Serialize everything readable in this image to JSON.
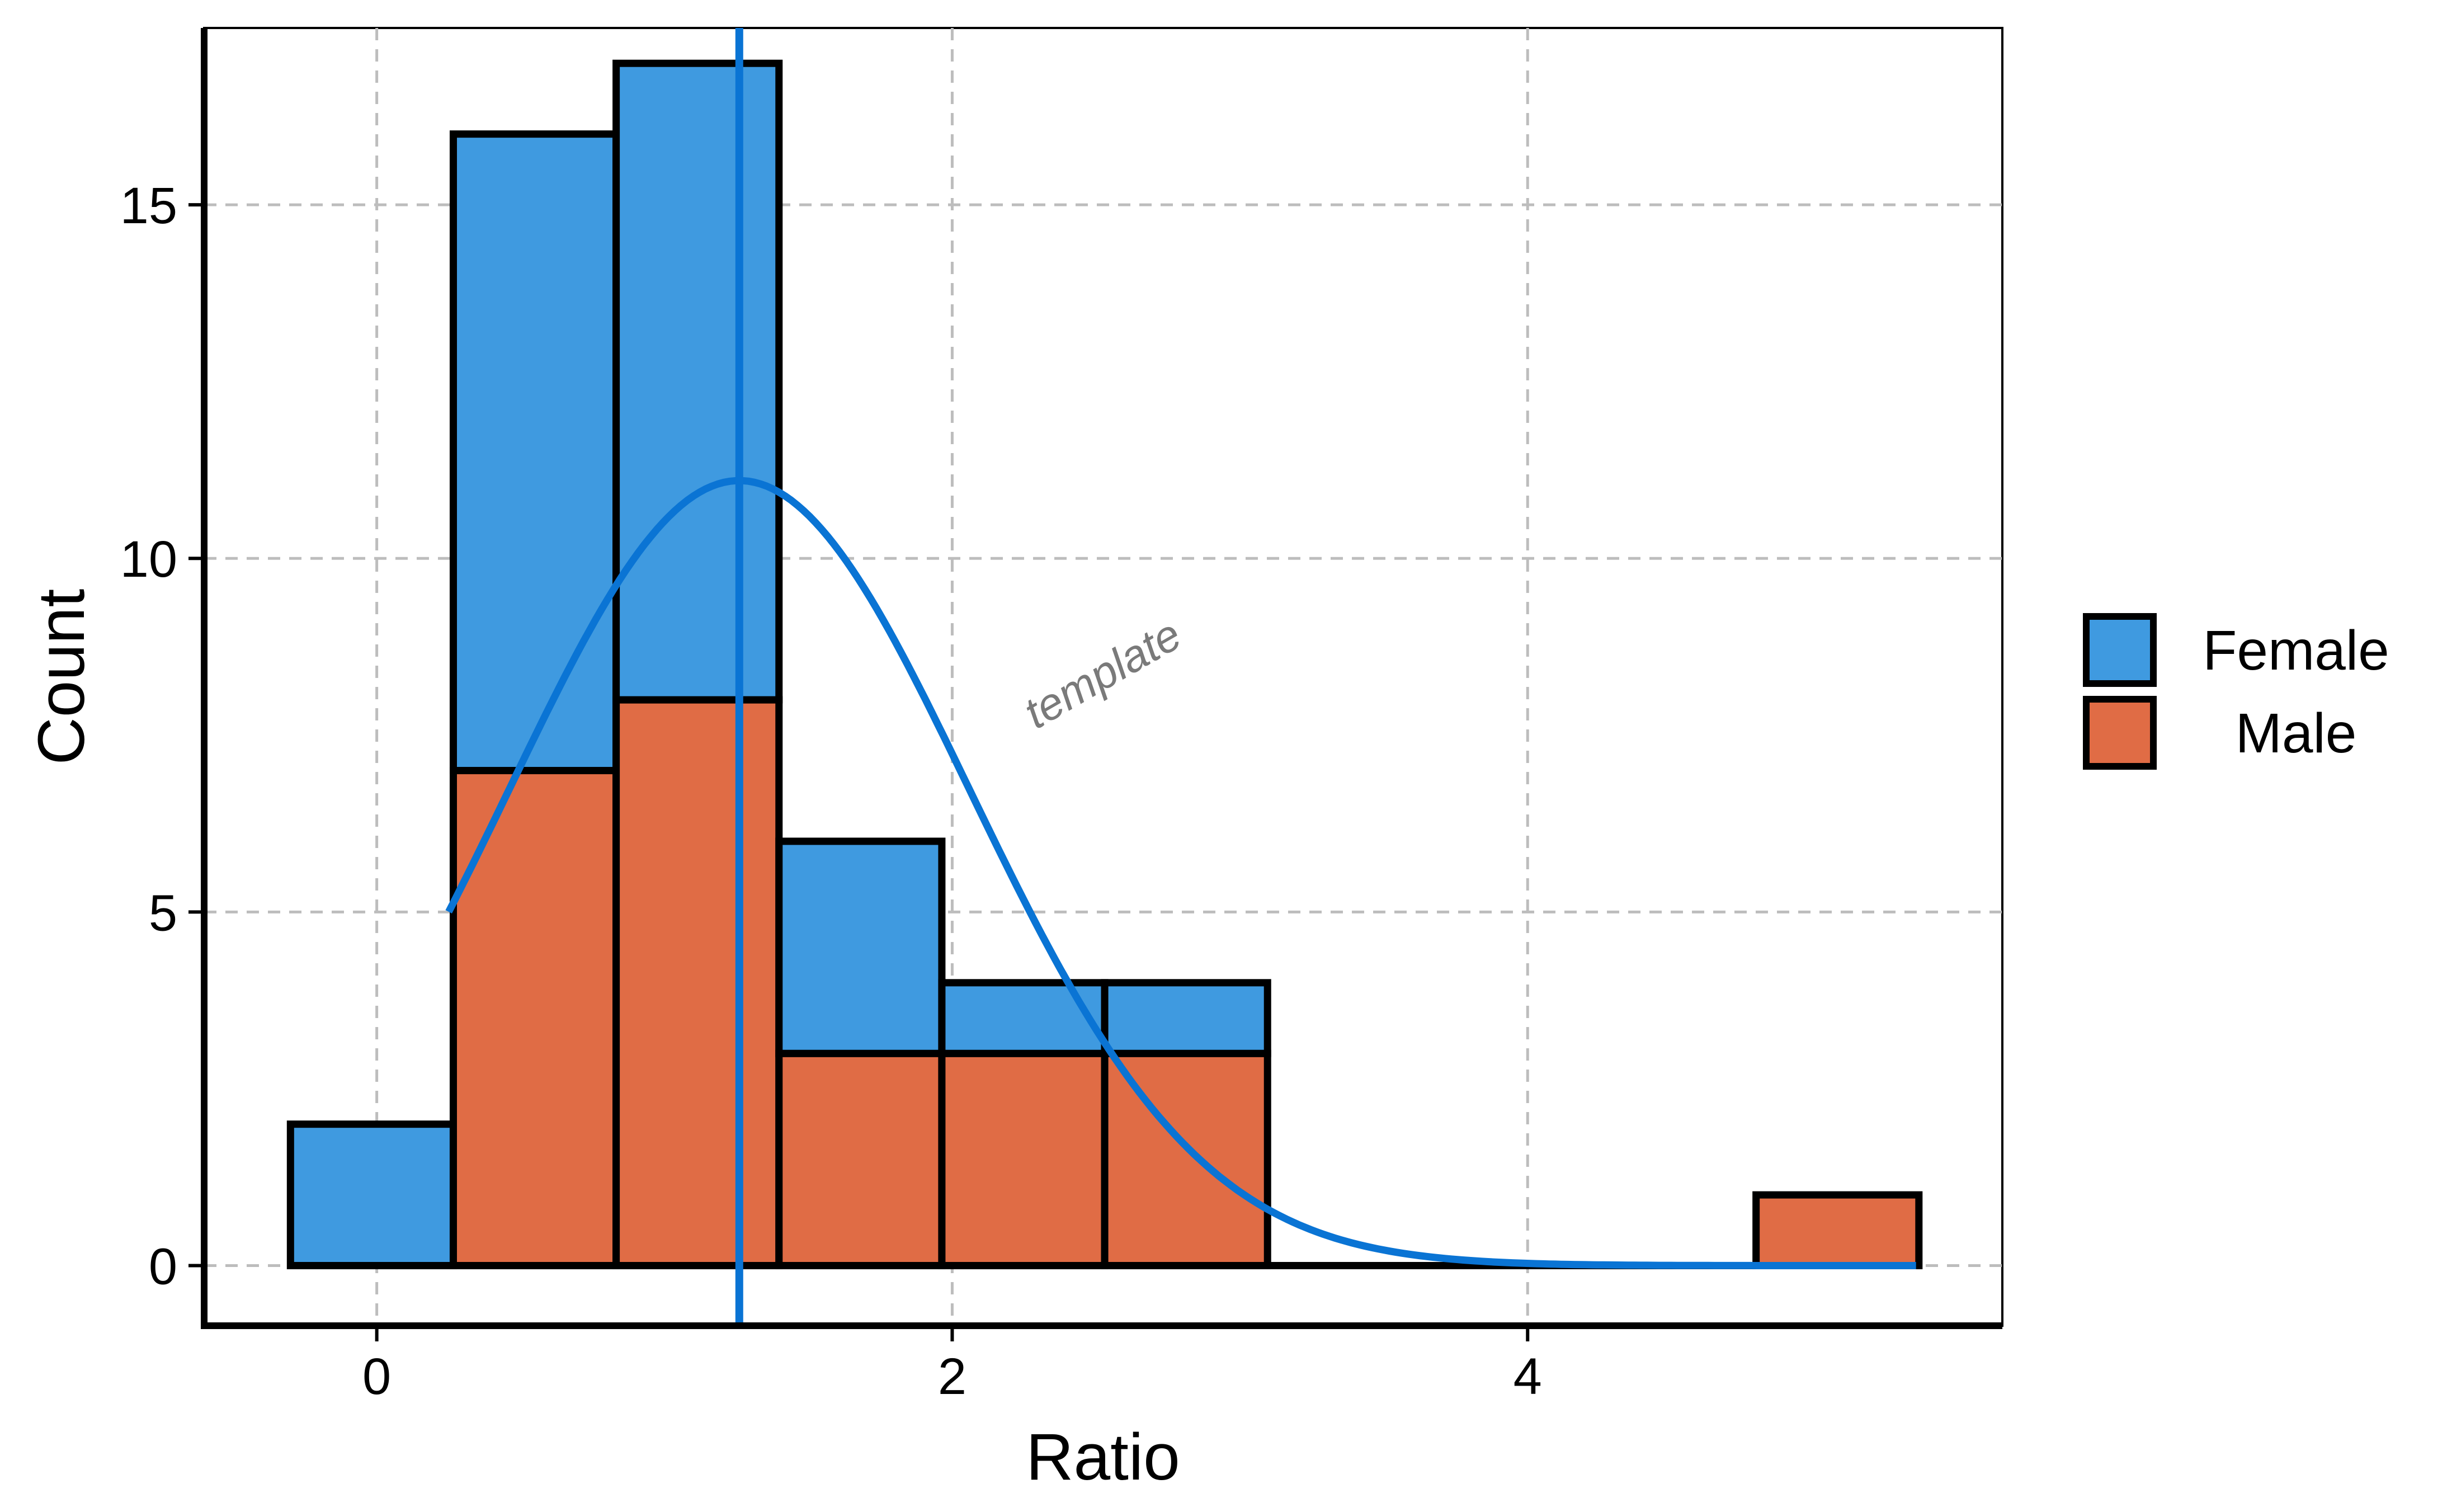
{
  "chart_data": {
    "type": "histogram",
    "xlabel": "Ratio",
    "ylabel": "Count",
    "xlim": [
      -0.6,
      5.65
    ],
    "ylim": [
      -0.85,
      17.5
    ],
    "x_ticks": [
      0,
      2,
      4
    ],
    "y_ticks": [
      0,
      5,
      10,
      15
    ],
    "grid": true,
    "grid_style": "dashed",
    "legend_position": "right",
    "bin_edges": [
      -0.3,
      0.266,
      0.832,
      1.398,
      1.964,
      2.53,
      3.096,
      3.662,
      4.228,
      4.794,
      5.36
    ],
    "series": [
      {
        "name": "Male",
        "color": "#E06C45",
        "values": [
          0,
          7,
          8,
          3,
          3,
          3,
          0,
          0,
          0,
          1
        ]
      },
      {
        "name": "Female",
        "color": "#3F9AE0",
        "values": [
          2,
          9,
          9,
          3,
          1,
          1,
          0,
          0,
          0,
          0
        ]
      }
    ],
    "stacked": true,
    "stack_order": [
      "Male",
      "Female"
    ],
    "reference_line": {
      "x": 1.26,
      "color": "#0A74D4"
    },
    "density_curve": {
      "color": "#0A74D4",
      "peak_x": 1.26,
      "peak_y": 11.1,
      "sd": 0.8,
      "x_start": 0.25,
      "x_end": 5.35
    },
    "annotation": "template",
    "legend": [
      {
        "label": "Female",
        "color": "#3F9AE0"
      },
      {
        "label": "Male",
        "color": "#E06C45"
      }
    ]
  }
}
